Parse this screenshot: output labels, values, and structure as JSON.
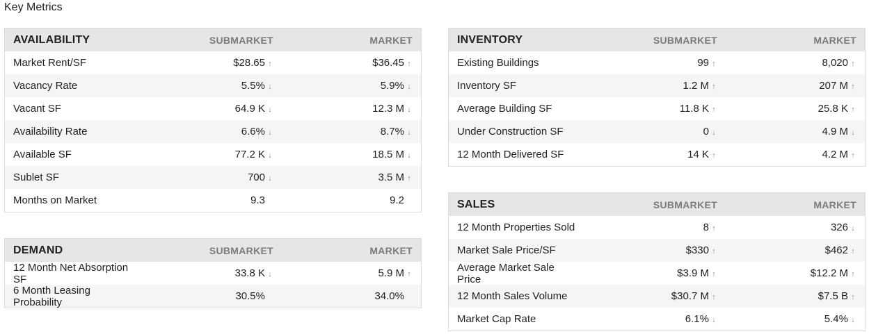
{
  "page_title": "Key Metrics",
  "availability": {
    "title": "AVAILABILITY",
    "col1": "SUBMARKET",
    "col2": "MARKET",
    "rows": [
      {
        "label": "Market Rent/SF",
        "sub": "$28.65",
        "sub_dir": "up",
        "mkt": "$36.45",
        "mkt_dir": "up"
      },
      {
        "label": "Vacancy Rate",
        "sub": "5.5%",
        "sub_dir": "down",
        "mkt": "5.9%",
        "mkt_dir": "down"
      },
      {
        "label": "Vacant SF",
        "sub": "64.9 K",
        "sub_dir": "down",
        "mkt": "12.3 M",
        "mkt_dir": "down"
      },
      {
        "label": "Availability Rate",
        "sub": "6.6%",
        "sub_dir": "down",
        "mkt": "8.7%",
        "mkt_dir": "down"
      },
      {
        "label": "Available SF",
        "sub": "77.2 K",
        "sub_dir": "down",
        "mkt": "18.5 M",
        "mkt_dir": "down"
      },
      {
        "label": "Sublet SF",
        "sub": "700",
        "sub_dir": "down",
        "mkt": "3.5 M",
        "mkt_dir": "up"
      },
      {
        "label": "Months on Market",
        "sub": "9.3",
        "sub_dir": "",
        "mkt": "9.2",
        "mkt_dir": ""
      }
    ]
  },
  "demand": {
    "title": "DEMAND",
    "col1": "SUBMARKET",
    "col2": "MARKET",
    "rows": [
      {
        "label": "12 Month Net Absorption SF",
        "sub": "33.8 K",
        "sub_dir": "down",
        "mkt": "5.9 M",
        "mkt_dir": "up"
      },
      {
        "label": "6 Month Leasing Probability",
        "sub": "30.5%",
        "sub_dir": "",
        "mkt": "34.0%",
        "mkt_dir": ""
      }
    ]
  },
  "inventory": {
    "title": "INVENTORY",
    "col1": "SUBMARKET",
    "col2": "MARKET",
    "rows": [
      {
        "label": "Existing Buildings",
        "sub": "99",
        "sub_dir": "up",
        "mkt": "8,020",
        "mkt_dir": "up"
      },
      {
        "label": "Inventory SF",
        "sub": "1.2 M",
        "sub_dir": "up",
        "mkt": "207 M",
        "mkt_dir": "up"
      },
      {
        "label": "Average Building SF",
        "sub": "11.8 K",
        "sub_dir": "up",
        "mkt": "25.8 K",
        "mkt_dir": "up"
      },
      {
        "label": "Under Construction SF",
        "sub": "0",
        "sub_dir": "down",
        "mkt": "4.9 M",
        "mkt_dir": "down"
      },
      {
        "label": "12 Month Delivered SF",
        "sub": "14 K",
        "sub_dir": "up",
        "mkt": "4.2 M",
        "mkt_dir": "up"
      }
    ]
  },
  "sales": {
    "title": "SALES",
    "col1": "SUBMARKET",
    "col2": "MARKET",
    "rows": [
      {
        "label": "12 Month Properties Sold",
        "sub": "8",
        "sub_dir": "up",
        "mkt": "326",
        "mkt_dir": "down"
      },
      {
        "label": "Market Sale Price/SF",
        "sub": "$330",
        "sub_dir": "up",
        "mkt": "$462",
        "mkt_dir": "up"
      },
      {
        "label": "Average Market Sale Price",
        "sub": "$3.9 M",
        "sub_dir": "up",
        "mkt": "$12.2 M",
        "mkt_dir": "up"
      },
      {
        "label": "12 Month Sales Volume",
        "sub": "$30.7 M",
        "sub_dir": "up",
        "mkt": "$7.5 B",
        "mkt_dir": "up"
      },
      {
        "label": "Market Cap Rate",
        "sub": "6.1%",
        "sub_dir": "down",
        "mkt": "5.4%",
        "mkt_dir": "down"
      }
    ]
  }
}
